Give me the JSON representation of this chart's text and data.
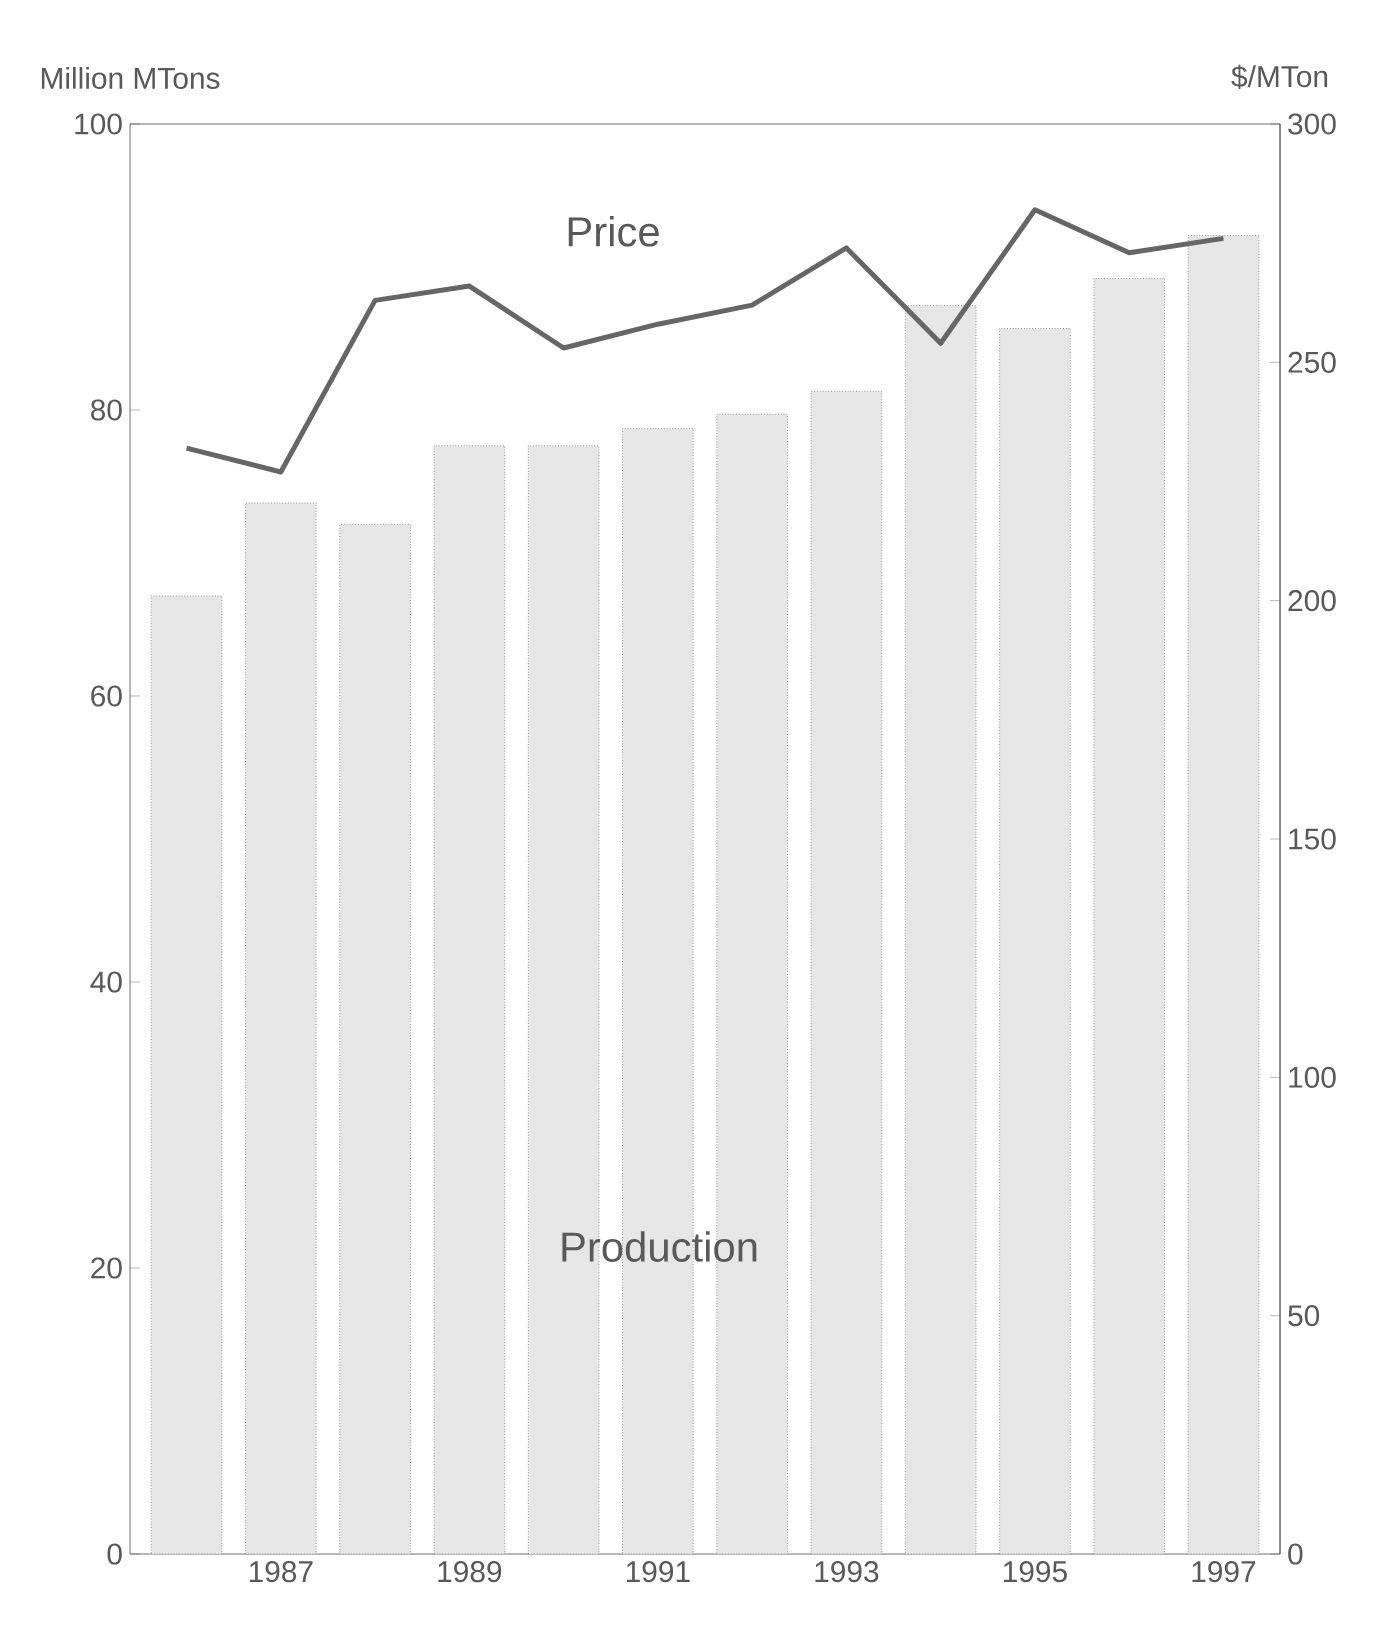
{
  "chart_data": {
    "type": "bar",
    "ylabel": "Million MTons",
    "y2label": "$/MTon",
    "categories": [
      null,
      "1987",
      null,
      "1989",
      null,
      "1991",
      null,
      "1993",
      null,
      "1995",
      null,
      "1997"
    ],
    "series": [
      {
        "name": "Production",
        "color": "#e6e6e6",
        "values": [
          67,
          73.5,
          72,
          77.5,
          77.5,
          78.7,
          79.7,
          81.3,
          87.3,
          85.7,
          89.2,
          92.2
        ]
      },
      {
        "name": "Price",
        "type": "line",
        "axis": "y2",
        "color": "#666666",
        "values": [
          232,
          227,
          263,
          266,
          253,
          258,
          262,
          274,
          254,
          282,
          273,
          276
        ]
      }
    ],
    "ylim": [
      0,
      100
    ],
    "yticks": [
      0,
      20,
      40,
      60,
      80,
      100
    ],
    "y2lim": [
      0,
      300
    ],
    "y2ticks": [
      0,
      50,
      100,
      150,
      200,
      250,
      300
    ]
  }
}
